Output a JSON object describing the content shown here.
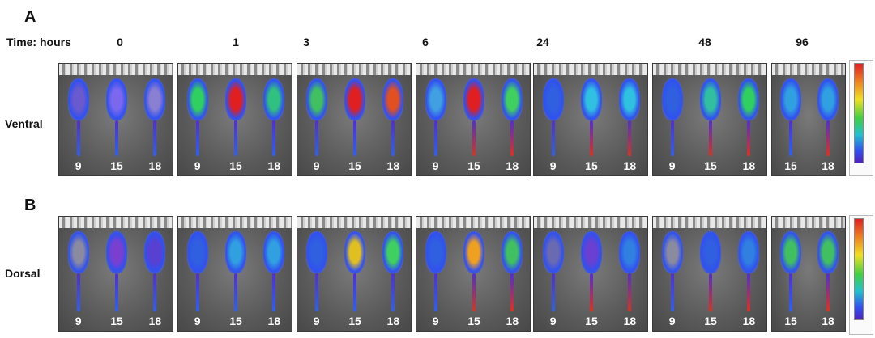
{
  "panels": {
    "a_label": "A",
    "b_label": "B"
  },
  "header": {
    "time_label": "Time: hours"
  },
  "timepoints": [
    "0",
    "1",
    "3",
    "6",
    "24",
    "48",
    "96"
  ],
  "rows": [
    {
      "name": "ventral",
      "label": "Ventral"
    },
    {
      "name": "dorsal",
      "label": "Dorsal"
    }
  ],
  "mouse_ids": [
    "9",
    "15",
    "18"
  ],
  "mouse_ids_last": [
    "15",
    "18"
  ],
  "colorscale": {
    "max_color": "#e02020",
    "min_color": "#5020c0"
  }
}
